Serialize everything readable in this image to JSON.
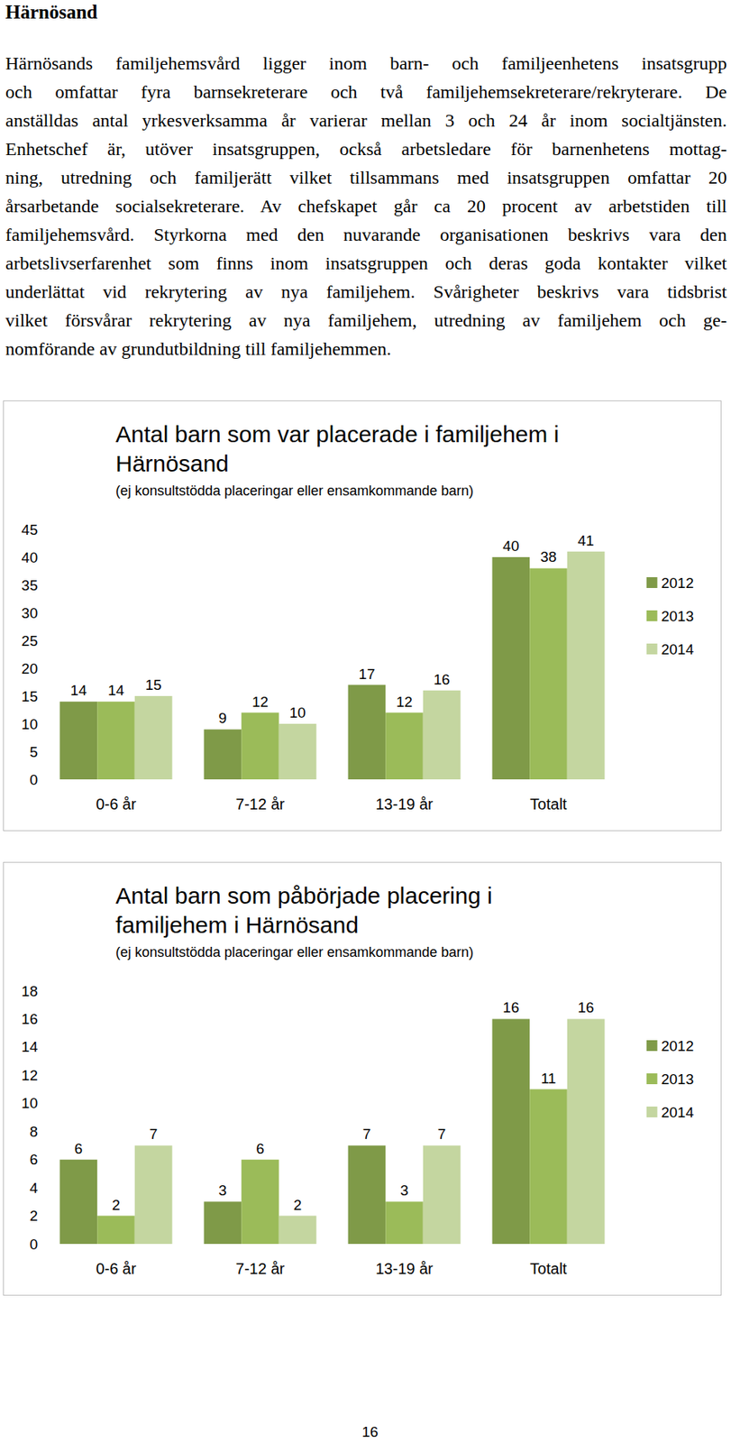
{
  "heading": "Härnösand",
  "paragraph_lines": [
    "Härnösands familjehemsvård ligger inom barn- och familjeenhetens insatsgrupp",
    "och omfattar fyra barnsekreterare och två familjehemsekreterare/rekryterare. De",
    "anställdas antal yrkesverksamma år varierar mellan 3 och 24 år inom socialtjänsten.",
    "Enhetschef är, utöver insatsgruppen, också arbetsledare för barnenhetens mottag-",
    "ning, utredning och familjerätt vilket tillsammans med insatsgruppen omfattar 20",
    "årsarbetande socialsekreterare. Av chefskapet går ca 20 procent av arbetstiden till",
    "familjehemsvård. Styrkorna med den nuvarande organisationen beskrivs vara den",
    "arbetslivserfarenhet som finns inom insatsgruppen och deras goda kontakter vilket",
    "underlättat vid rekrytering av nya familjehem. Svårigheter beskrivs vara tidsbrist",
    "vilket försvårar rekrytering av nya familjehem, utredning av familjehem och ge-",
    "nomförande av grundutbildning till familjehemmen."
  ],
  "chart_data": [
    {
      "type": "bar",
      "title": "Antal barn som var placerade i familjehem i Härnösand",
      "subtitle": "(ej konsultstödda placeringar eller ensamkommande barn)",
      "categories": [
        "0-6 år",
        "7-12 år",
        "13-19 år",
        "Totalt"
      ],
      "series": [
        {
          "name": "2012",
          "color": "#7f9a48",
          "values": [
            14,
            9,
            17,
            40
          ]
        },
        {
          "name": "2013",
          "color": "#9bbb59",
          "values": [
            14,
            12,
            12,
            38
          ]
        },
        {
          "name": "2014",
          "color": "#c4d6a0",
          "values": [
            15,
            10,
            16,
            41
          ]
        }
      ],
      "ylim": [
        0,
        45
      ],
      "yticks": [
        0,
        5,
        10,
        15,
        20,
        25,
        30,
        35,
        40,
        45
      ],
      "grid": false,
      "legend": "right",
      "data_labels": true
    },
    {
      "type": "bar",
      "title": "Antal barn som påbörjade placering i familjehem i Härnösand",
      "subtitle": "(ej konsultstödda placeringar eller ensamkommande barn)",
      "categories": [
        "0-6 år",
        "7-12 år",
        "13-19 år",
        "Totalt"
      ],
      "series": [
        {
          "name": "2012",
          "color": "#7f9a48",
          "values": [
            6,
            3,
            7,
            16
          ]
        },
        {
          "name": "2013",
          "color": "#9bbb59",
          "values": [
            2,
            6,
            3,
            11
          ]
        },
        {
          "name": "2014",
          "color": "#c4d6a0",
          "values": [
            7,
            2,
            7,
            16
          ]
        }
      ],
      "ylim": [
        0,
        18
      ],
      "yticks": [
        0,
        2,
        4,
        6,
        8,
        10,
        12,
        14,
        16,
        18
      ],
      "grid": false,
      "legend": "right",
      "data_labels": true
    }
  ],
  "page_number": 16
}
